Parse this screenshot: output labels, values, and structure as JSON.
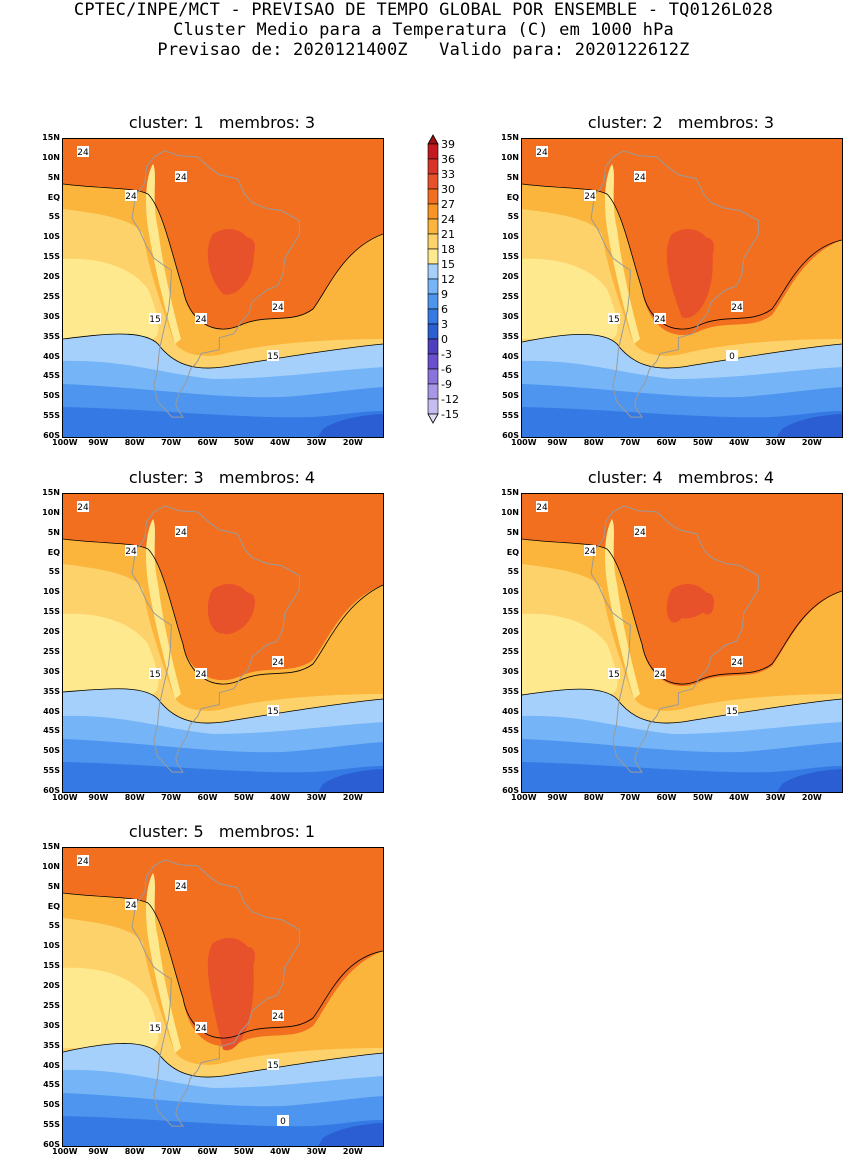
{
  "header": {
    "line1": "CPTEC/INPE/MCT - PREVISAO DE TEMPO GLOBAL POR ENSEMBLE - TQ0126L028",
    "line2": "Cluster Medio para a Temperatura (C) em 1000 hPa",
    "line3": "Previsao de: 2020121400Z   Valido para: 2020122612Z"
  },
  "lat_ticks": [
    "15N",
    "10N",
    "5N",
    "EQ",
    "5S",
    "10S",
    "15S",
    "20S",
    "25S",
    "30S",
    "35S",
    "40S",
    "45S",
    "50S",
    "55S",
    "60S"
  ],
  "lon_ticks": [
    "100W",
    "90W",
    "80W",
    "70W",
    "60W",
    "50W",
    "40W",
    "30W",
    "20W"
  ],
  "colorbar": {
    "levels": [
      "39",
      "36",
      "33",
      "30",
      "27",
      "24",
      "21",
      "18",
      "15",
      "12",
      "9",
      "6",
      "3",
      "0",
      "-3",
      "-6",
      "-9",
      "-12",
      "-15"
    ],
    "colors": [
      "#a00f12",
      "#c4191e",
      "#d8342a",
      "#e8522a",
      "#f26f20",
      "#f99425",
      "#fbb53c",
      "#fdd26a",
      "#ffe98e",
      "#a5d0fb",
      "#74b4f7",
      "#4d95ef",
      "#3579e4",
      "#2a5ed2",
      "#4d3fbf",
      "#6a4fcf",
      "#8a73dd",
      "#a897e7",
      "#c8bdf0",
      "#e3dcf8"
    ]
  },
  "panels": [
    {
      "title": "cluster: 1   membros: 3",
      "labels": [
        "24",
        "24",
        "24",
        "24",
        "24",
        "15",
        "15"
      ]
    },
    {
      "title": "cluster: 2   membros: 3",
      "labels": [
        "24",
        "24",
        "24",
        "24",
        "24",
        "15",
        "0"
      ]
    },
    {
      "title": "cluster: 3   membros: 4",
      "labels": [
        "24",
        "24",
        "24",
        "24",
        "24",
        "15",
        "15"
      ]
    },
    {
      "title": "cluster: 4   membros: 4",
      "labels": [
        "24",
        "24",
        "24",
        "24",
        "24",
        "15",
        "15"
      ]
    },
    {
      "title": "cluster: 5   membros: 1",
      "labels": [
        "24",
        "24",
        "24",
        "24",
        "24",
        "15",
        "15",
        "0"
      ]
    }
  ]
}
